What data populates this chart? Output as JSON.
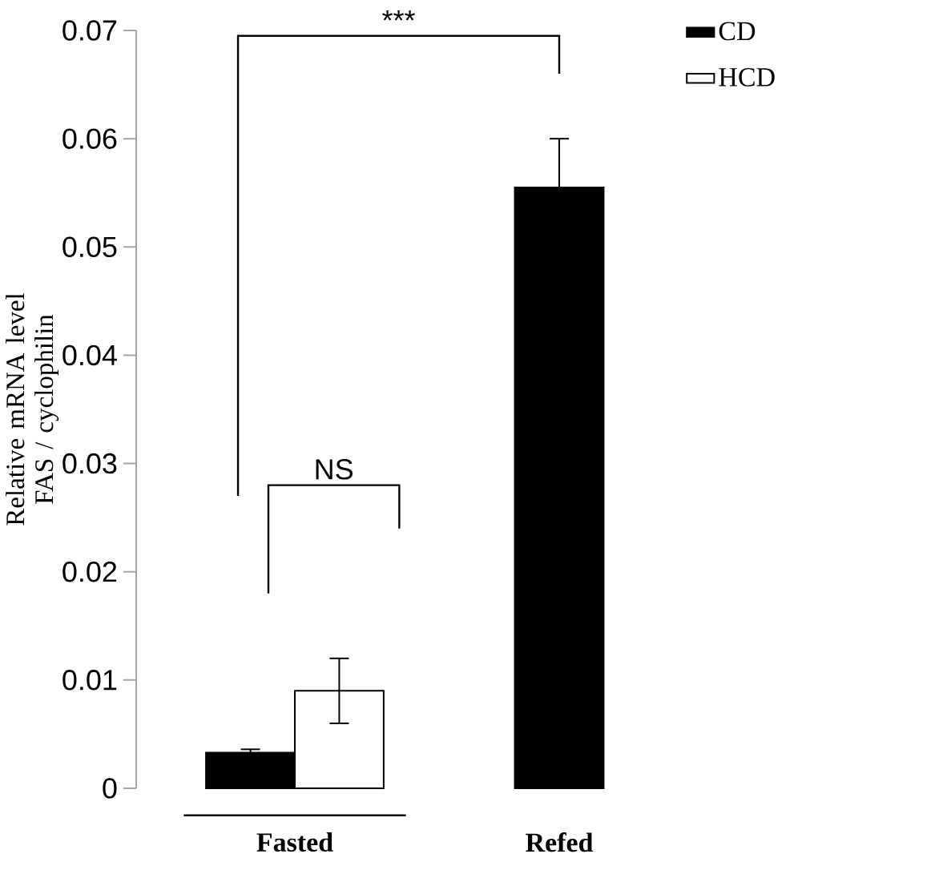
{
  "chart_data": {
    "type": "bar",
    "ylabel": "Relative mRNA level FAS / cyclophilin",
    "categories": [
      "Fasted",
      "Refed"
    ],
    "series": [
      {
        "name": "CD",
        "color": "#000000",
        "values": [
          0.0033,
          0.0555
        ],
        "errors": [
          0.0003,
          0.0045
        ]
      },
      {
        "name": "HCD",
        "color": "#ffffff",
        "values": [
          0.009,
          null
        ],
        "errors": [
          0.003,
          null
        ]
      }
    ],
    "ylim": [
      0,
      0.07
    ],
    "yticks": [
      0,
      0.01,
      0.02,
      0.03,
      0.04,
      0.05,
      0.06,
      0.07
    ],
    "legend": "top right",
    "annotations": [
      "***",
      "NS"
    ]
  }
}
